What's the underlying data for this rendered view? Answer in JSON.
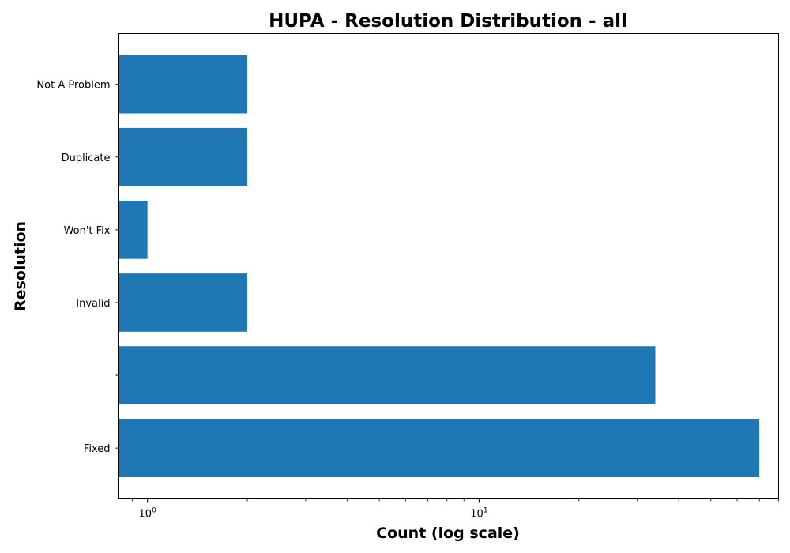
{
  "chart_data": {
    "type": "bar",
    "orientation": "horizontal",
    "title": "HUPA - Resolution Distribution - all",
    "xlabel": "Count (log scale)",
    "ylabel": "Resolution",
    "x_scale": "log",
    "xlim": [
      0.82,
      80
    ],
    "x_ticks": [
      {
        "base": "10",
        "exp": "0",
        "value": 1
      },
      {
        "base": "10",
        "exp": "1",
        "value": 10
      }
    ],
    "categories": [
      "Fixed",
      "",
      "Invalid",
      "Won't Fix",
      "Duplicate",
      "Not A Problem"
    ],
    "values": [
      70,
      34,
      2,
      1,
      2,
      2
    ],
    "bar_color": "#1f77b4",
    "grid": false,
    "legend": "none"
  }
}
